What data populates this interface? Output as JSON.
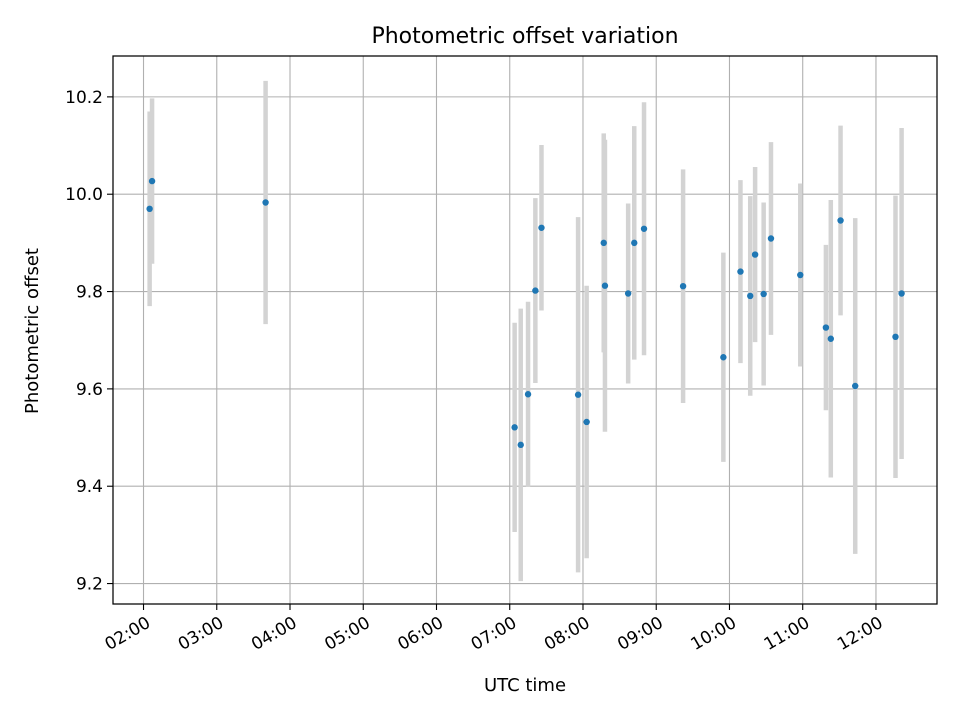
{
  "chart_data": {
    "type": "scatter",
    "title": "Photometric offset variation",
    "xlabel": "UTC time",
    "ylabel": "Photometric offset",
    "x_ticks": [
      "02:00",
      "03:00",
      "04:00",
      "05:00",
      "06:00",
      "07:00",
      "08:00",
      "09:00",
      "10:00",
      "11:00",
      "12:00"
    ],
    "y_ticks": [
      "9.2",
      "9.4",
      "9.6",
      "9.8",
      "10.0",
      "10.2"
    ],
    "xlim": [
      "01:35",
      "12:50"
    ],
    "ylim": [
      9.158,
      10.284
    ],
    "grid": true,
    "colors": {
      "marker": "#1f77b4",
      "errorbar": "#d3d3d3",
      "grid": "#b0b0b0"
    },
    "points": [
      {
        "x": "02:05",
        "y": 9.97,
        "err": 0.2
      },
      {
        "x": "02:07",
        "y": 10.027,
        "err": 0.17
      },
      {
        "x": "03:40",
        "y": 9.983,
        "err": 0.25
      },
      {
        "x": "07:04",
        "y": 9.521,
        "err": 0.215
      },
      {
        "x": "07:09",
        "y": 9.485,
        "err": 0.28
      },
      {
        "x": "07:15",
        "y": 9.589,
        "err": 0.19
      },
      {
        "x": "07:21",
        "y": 9.802,
        "err": 0.19
      },
      {
        "x": "07:26",
        "y": 9.931,
        "err": 0.17
      },
      {
        "x": "07:56",
        "y": 9.588,
        "err": 0.365
      },
      {
        "x": "08:03",
        "y": 9.532,
        "err": 0.28
      },
      {
        "x": "08:17",
        "y": 9.9,
        "err": 0.225
      },
      {
        "x": "08:18",
        "y": 9.812,
        "err": 0.3
      },
      {
        "x": "08:37",
        "y": 9.796,
        "err": 0.185
      },
      {
        "x": "08:42",
        "y": 9.9,
        "err": 0.24
      },
      {
        "x": "08:50",
        "y": 9.929,
        "err": 0.26
      },
      {
        "x": "09:22",
        "y": 9.811,
        "err": 0.24
      },
      {
        "x": "09:55",
        "y": 9.665,
        "err": 0.215
      },
      {
        "x": "10:09",
        "y": 9.841,
        "err": 0.188
      },
      {
        "x": "10:17",
        "y": 9.791,
        "err": 0.205
      },
      {
        "x": "10:21",
        "y": 9.876,
        "err": 0.18
      },
      {
        "x": "10:28",
        "y": 9.795,
        "err": 0.188
      },
      {
        "x": "10:34",
        "y": 9.909,
        "err": 0.198
      },
      {
        "x": "10:58",
        "y": 9.834,
        "err": 0.188
      },
      {
        "x": "11:19",
        "y": 9.726,
        "err": 0.17
      },
      {
        "x": "11:23",
        "y": 9.703,
        "err": 0.285
      },
      {
        "x": "11:31",
        "y": 9.946,
        "err": 0.195
      },
      {
        "x": "11:43",
        "y": 9.606,
        "err": 0.345
      },
      {
        "x": "12:16",
        "y": 9.707,
        "err": 0.29
      },
      {
        "x": "12:21",
        "y": 9.796,
        "err": 0.34
      }
    ]
  }
}
